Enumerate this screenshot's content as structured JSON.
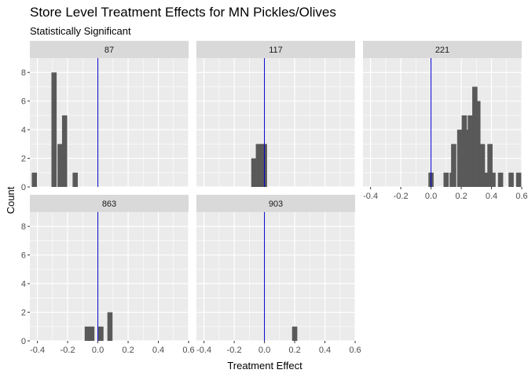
{
  "chart_data": {
    "type": "histogram",
    "title": "Store Level Treatment Effects for MN Pickles/Olives",
    "subtitle": "Statistically Significant",
    "xlabel": "Treatment Effect",
    "ylabel": "Count",
    "xlim": [
      -0.45,
      0.6
    ],
    "ylim": [
      0,
      9
    ],
    "xticks": [
      "-0.4",
      "-0.2",
      "0.0",
      "0.2",
      "0.4",
      "0.6"
    ],
    "xtick_values": [
      -0.4,
      -0.2,
      0.0,
      0.2,
      0.4,
      0.6
    ],
    "yticks": [
      "0",
      "2",
      "4",
      "6",
      "8"
    ],
    "ytick_values": [
      0,
      2,
      4,
      6,
      8
    ],
    "bin_width": 0.0344,
    "reference_line": {
      "x": 0.0,
      "color": "#0000cc"
    },
    "bar_color": "#595959",
    "panel_bg": "#ebebeb",
    "strip_bg": "#d9d9d9",
    "panels": [
      {
        "label": "87",
        "bins": [
          [
            -0.42,
            1
          ],
          [
            -0.29,
            8
          ],
          [
            -0.25,
            3
          ],
          [
            -0.22,
            5
          ],
          [
            -0.15,
            1
          ]
        ]
      },
      {
        "label": "117",
        "bins": [
          [
            -0.07,
            2
          ],
          [
            -0.04,
            3
          ],
          [
            -0.02,
            3
          ],
          [
            0.0,
            3
          ]
        ]
      },
      {
        "label": "221",
        "bins": [
          [
            0.0,
            1
          ],
          [
            0.1,
            1
          ],
          [
            0.14,
            1
          ],
          [
            0.15,
            3
          ],
          [
            0.19,
            4
          ],
          [
            0.22,
            5
          ],
          [
            0.24,
            4
          ],
          [
            0.26,
            5
          ],
          [
            0.29,
            7
          ],
          [
            0.31,
            6
          ],
          [
            0.34,
            3
          ],
          [
            0.36,
            1
          ],
          [
            0.39,
            3
          ],
          [
            0.41,
            1
          ],
          [
            0.46,
            1
          ],
          [
            0.53,
            1
          ],
          [
            0.58,
            1
          ]
        ]
      },
      {
        "label": "863",
        "bins": [
          [
            -0.07,
            1
          ],
          [
            -0.04,
            1
          ],
          [
            0.02,
            1
          ],
          [
            0.08,
            2
          ]
        ]
      },
      {
        "label": "903",
        "bins": [
          [
            0.2,
            1
          ]
        ]
      }
    ]
  }
}
